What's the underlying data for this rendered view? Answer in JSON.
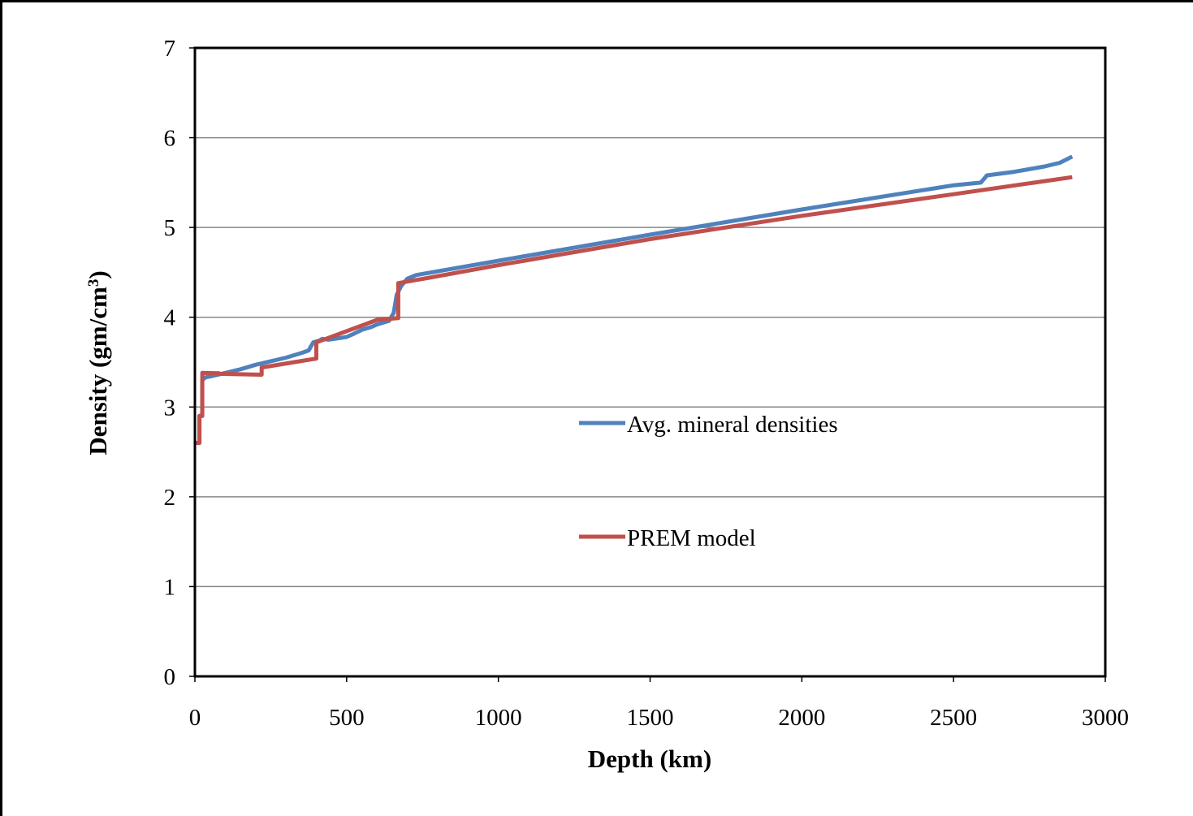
{
  "chart_data": {
    "type": "line",
    "xlabel": "Depth (km)",
    "ylabel_main": "Density (gm/cm",
    "ylabel_sup": "3",
    "ylabel_close": ")",
    "xlim": [
      0,
      3000
    ],
    "ylim": [
      0,
      7
    ],
    "xticks": [
      0,
      500,
      1000,
      1500,
      2000,
      2500,
      3000
    ],
    "yticks": [
      0,
      1,
      2,
      3,
      4,
      5,
      6,
      7
    ],
    "grid": "horizontal",
    "legend_placement": "center-right",
    "series": [
      {
        "name": "Avg. mineral densities",
        "color": "#4F81BD",
        "x": [
          0,
          15,
          15,
          24,
          24,
          35,
          50,
          100,
          150,
          200,
          250,
          300,
          350,
          375,
          390,
          410,
          420,
          440,
          460,
          500,
          520,
          550,
          580,
          600,
          620,
          640,
          655,
          665,
          680,
          700,
          730,
          1000,
          1500,
          2000,
          2500,
          2590,
          2610,
          2700,
          2800,
          2850,
          2891
        ],
        "y": [
          2.6,
          2.6,
          2.9,
          2.9,
          3.3,
          3.33,
          3.34,
          3.38,
          3.42,
          3.47,
          3.51,
          3.55,
          3.6,
          3.63,
          3.72,
          3.74,
          3.76,
          3.75,
          3.76,
          3.78,
          3.81,
          3.86,
          3.89,
          3.92,
          3.94,
          3.96,
          4.05,
          4.25,
          4.35,
          4.43,
          4.47,
          4.63,
          4.92,
          5.2,
          5.47,
          5.5,
          5.58,
          5.62,
          5.68,
          5.72,
          5.79
        ]
      },
      {
        "name": "PREM model",
        "color": "#C0504D",
        "x": [
          3,
          15,
          15,
          24.4,
          24.4,
          80,
          80,
          220,
          220,
          400,
          400,
          600,
          670,
          670,
          771,
          1000,
          1500,
          2000,
          2500,
          2891
        ],
        "y": [
          2.6,
          2.6,
          2.9,
          2.9,
          3.38,
          3.375,
          3.37,
          3.36,
          3.44,
          3.54,
          3.72,
          3.97,
          3.99,
          4.38,
          4.44,
          4.58,
          4.87,
          5.13,
          5.37,
          5.56
        ]
      }
    ]
  }
}
